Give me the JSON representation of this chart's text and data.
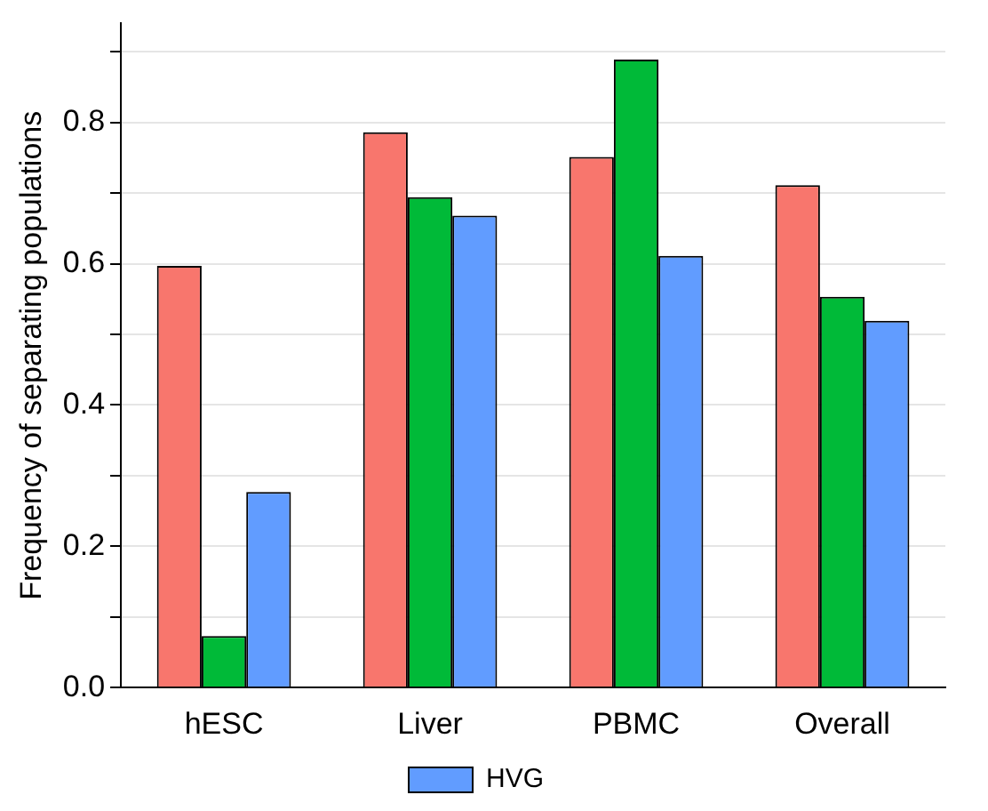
{
  "chart_data": {
    "type": "bar",
    "ylabel": "Frequency of separating populations",
    "categories": [
      "hESC",
      "Liver",
      "PBMC",
      "Overall"
    ],
    "series": [
      {
        "color": "#f8766d",
        "values": [
          0.597,
          0.786,
          0.751,
          0.711
        ]
      },
      {
        "color": "#00ba38",
        "values": [
          0.073,
          0.694,
          0.889,
          0.553
        ]
      },
      {
        "name": "HVG",
        "color": "#619cff",
        "values": [
          0.277,
          0.668,
          0.611,
          0.519
        ]
      }
    ],
    "ylim": [
      0,
      0.94
    ],
    "yticks": [
      {
        "value": 0,
        "label": "0.0"
      },
      {
        "value": 0.1,
        "label": null
      },
      0.2,
      {
        "value": 0.3,
        "label": null
      },
      0.4,
      {
        "value": 0.5,
        "label": null
      },
      0.6,
      {
        "value": 0.7,
        "label": null
      },
      0.8,
      {
        "value": 0.9,
        "label": null
      }
    ],
    "grid": "y",
    "legend": "bottom"
  }
}
